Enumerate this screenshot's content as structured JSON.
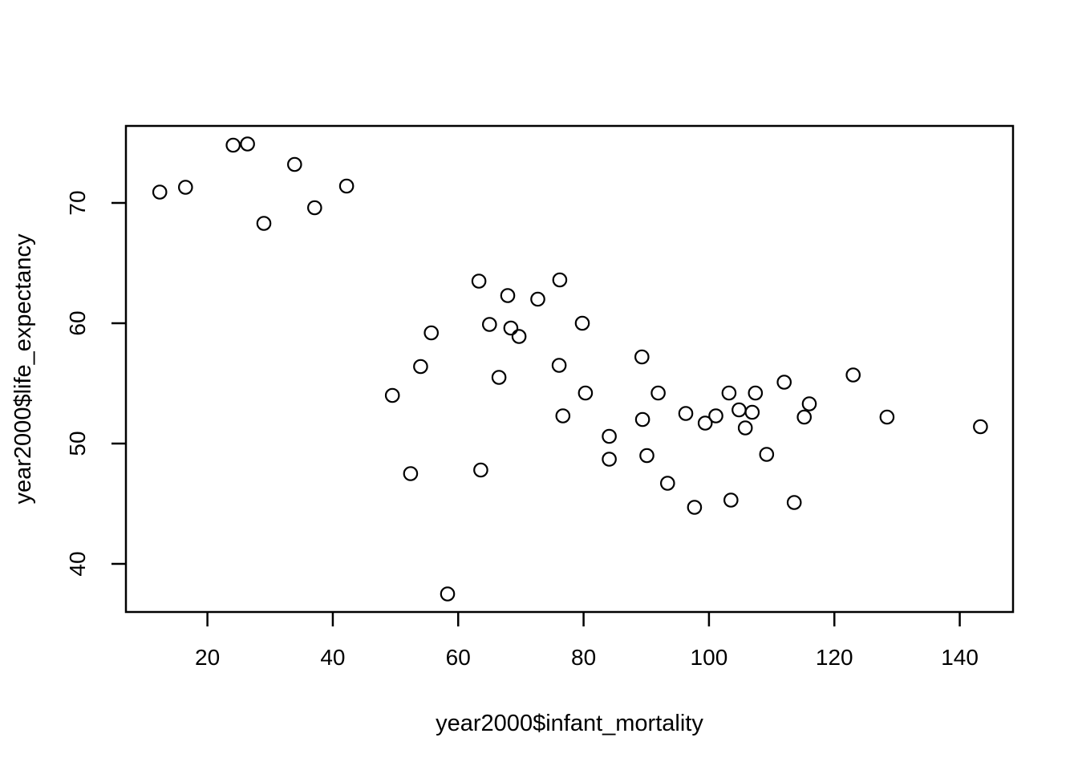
{
  "chart_data": {
    "type": "scatter",
    "title": "",
    "xlabel": "year2000$infant_mortality",
    "ylabel": "year2000$life_expectancy",
    "x_ticks": [
      20,
      40,
      60,
      80,
      100,
      120,
      140
    ],
    "y_ticks": [
      40,
      50,
      60,
      70
    ],
    "xlim": [
      7.0,
      148.5
    ],
    "ylim": [
      36.0,
      76.4
    ],
    "grid": "off",
    "legend": "none",
    "marker": "open-circle",
    "marker_color": "#000000",
    "points": [
      [
        12.4,
        70.9
      ],
      [
        16.5,
        71.3
      ],
      [
        24.1,
        74.8
      ],
      [
        26.4,
        74.9
      ],
      [
        29.0,
        68.3
      ],
      [
        33.9,
        73.2
      ],
      [
        37.1,
        69.6
      ],
      [
        42.2,
        71.4
      ],
      [
        49.5,
        54.0
      ],
      [
        52.4,
        47.5
      ],
      [
        54.0,
        56.4
      ],
      [
        55.7,
        59.2
      ],
      [
        58.3,
        37.5
      ],
      [
        63.3,
        63.5
      ],
      [
        63.6,
        47.8
      ],
      [
        65.0,
        59.9
      ],
      [
        66.5,
        55.5
      ],
      [
        67.9,
        62.3
      ],
      [
        68.4,
        59.6
      ],
      [
        69.7,
        58.9
      ],
      [
        72.7,
        62.0
      ],
      [
        76.1,
        56.5
      ],
      [
        76.2,
        63.6
      ],
      [
        76.7,
        52.3
      ],
      [
        79.8,
        60.0
      ],
      [
        80.3,
        54.2
      ],
      [
        84.1,
        50.6
      ],
      [
        84.1,
        48.7
      ],
      [
        89.3,
        57.2
      ],
      [
        89.4,
        52.0
      ],
      [
        90.1,
        49.0
      ],
      [
        91.9,
        54.2
      ],
      [
        93.4,
        46.7
      ],
      [
        96.3,
        52.5
      ],
      [
        97.7,
        44.7
      ],
      [
        99.4,
        51.7
      ],
      [
        101.1,
        52.3
      ],
      [
        103.2,
        54.2
      ],
      [
        103.5,
        45.3
      ],
      [
        104.8,
        52.8
      ],
      [
        105.8,
        51.3
      ],
      [
        106.9,
        52.6
      ],
      [
        107.4,
        54.2
      ],
      [
        109.2,
        49.1
      ],
      [
        112.0,
        55.1
      ],
      [
        113.6,
        45.1
      ],
      [
        115.2,
        52.2
      ],
      [
        116.0,
        53.3
      ],
      [
        123.0,
        55.7
      ],
      [
        128.4,
        52.2
      ],
      [
        143.3,
        51.4
      ]
    ]
  }
}
